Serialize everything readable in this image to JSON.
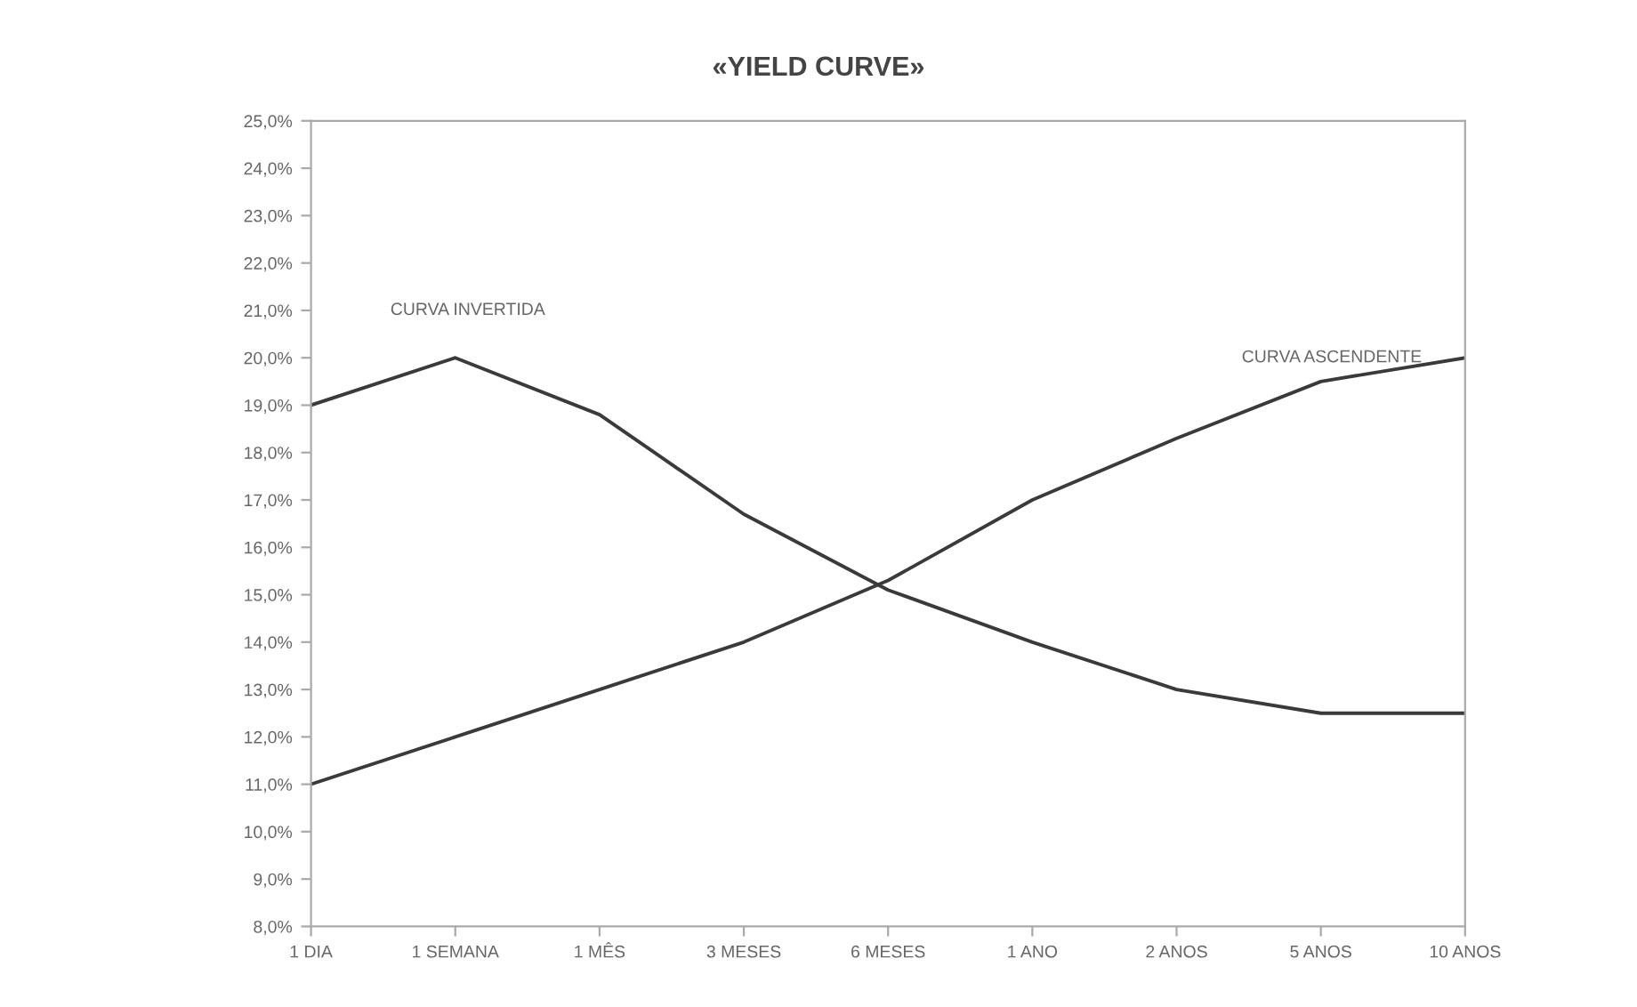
{
  "chart_data": {
    "type": "line",
    "title": "«YIELD CURVE»",
    "categories": [
      "1 DIA",
      "1 SEMANA",
      "1 MÊS",
      "3 MESES",
      "6 MESES",
      "1 ANO",
      "2 ANOS",
      "5 ANOS",
      "10 ANOS"
    ],
    "series": [
      {
        "name": "CURVA INVERTIDA",
        "color": "#3a3a3a",
        "values": [
          19.0,
          20.0,
          18.8,
          16.7,
          15.1,
          14.0,
          13.0,
          12.5,
          12.5
        ]
      },
      {
        "name": "CURVA ASCENDENTE",
        "color": "#3a3a3a",
        "values": [
          11.0,
          12.0,
          13.0,
          14.0,
          15.3,
          17.0,
          18.3,
          19.5,
          20.0
        ]
      }
    ],
    "ylim": [
      8,
      25
    ],
    "yticks": [
      {
        "value": 8,
        "label": "8,0%"
      },
      {
        "value": 9,
        "label": "9,0%"
      },
      {
        "value": 10,
        "label": "10,0%"
      },
      {
        "value": 11,
        "label": "11,0%"
      },
      {
        "value": 12,
        "label": "12,0%"
      },
      {
        "value": 13,
        "label": "13,0%"
      },
      {
        "value": 14,
        "label": "14,0%"
      },
      {
        "value": 15,
        "label": "15,0%"
      },
      {
        "value": 16,
        "label": "16,0%"
      },
      {
        "value": 17,
        "label": "17,0%"
      },
      {
        "value": 18,
        "label": "18,0%"
      },
      {
        "value": 19,
        "label": "19,0%"
      },
      {
        "value": 20,
        "label": "20,0%"
      },
      {
        "value": 21,
        "label": "21,0%"
      },
      {
        "value": 22,
        "label": "22,0%"
      },
      {
        "value": 23,
        "label": "23,0%"
      },
      {
        "value": 24,
        "label": "24,0%"
      },
      {
        "value": 25,
        "label": "25,0%"
      }
    ],
    "grid": false,
    "marker": "none",
    "line_style": "solid",
    "legend": false
  }
}
